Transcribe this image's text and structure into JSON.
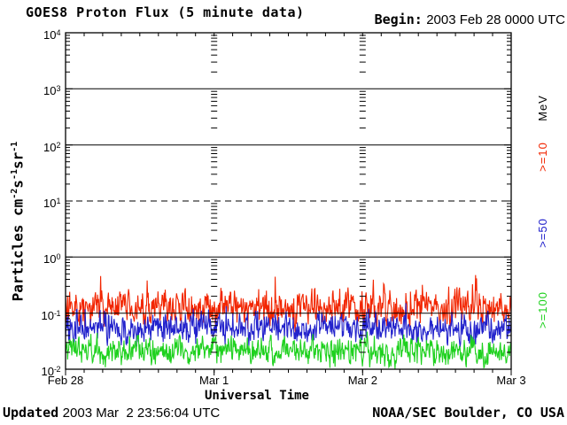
{
  "header": {
    "title": "GOES8 Proton Flux (5 minute data)",
    "begin_label": "Begin:",
    "begin_value": "2003 Feb 28 0000 UTC"
  },
  "footer": {
    "updated_label": "Updated",
    "updated_value": "2003 Mar  2 23:56:04 UTC",
    "source": "NOAA/SEC Boulder, CO USA"
  },
  "chart_data": {
    "type": "line",
    "title": "GOES8 Proton Flux (5 minute data)",
    "xlabel": "Universal Time",
    "ylabel": "Particles cm⁻²s⁻¹sr⁻¹",
    "ylabel_parts": [
      {
        "text": "Particles cm"
      },
      {
        "sup": "-2"
      },
      {
        "text": "s"
      },
      {
        "sup": "-1"
      },
      {
        "text": "sr"
      },
      {
        "sup": "-1"
      }
    ],
    "y_scale": "log10",
    "ylim": [
      0.01,
      10000
    ],
    "y_tick_base": "10",
    "y_tick_exponents": [
      "4",
      "3",
      "2",
      "1",
      "0",
      "-1",
      "-2"
    ],
    "gridlines": [
      {
        "exponent": 3,
        "style": "solid"
      },
      {
        "exponent": 2,
        "style": "solid"
      },
      {
        "exponent": 1,
        "style": "dashed"
      },
      {
        "exponent": 0,
        "style": "solid"
      },
      {
        "exponent": -1,
        "style": "solid"
      }
    ],
    "x_ticks": [
      "Feb 28",
      "Mar 1",
      "Mar 2",
      "Mar 3"
    ],
    "x_range_days": 3,
    "x_minor_tick_hours": 3,
    "cadence_minutes": 5,
    "points_per_series": 864,
    "unit_label": "MeV",
    "legend_position": "right",
    "series": [
      {
        "name": ">=10",
        "color": "#f22500",
        "typical_flux": 0.12,
        "flux_range": [
          0.04,
          0.5
        ],
        "log10_mean": -0.92,
        "log10_noise_halfrange": 0.42,
        "spike_probability": 0.05,
        "spike_amplitude": 0.55,
        "log10_min": -1.45,
        "log10_max": -0.32
      },
      {
        "name": ">=50",
        "color": "#2222cc",
        "typical_flux": 0.05,
        "flux_range": [
          0.02,
          0.15
        ],
        "log10_mean": -1.28,
        "log10_noise_halfrange": 0.38,
        "spike_probability": 0.03,
        "spike_amplitude": 0.35,
        "log10_min": -1.75,
        "log10_max": -0.82
      },
      {
        "name": ">=100",
        "color": "#1fd11f",
        "typical_flux": 0.02,
        "flux_range": [
          0.01,
          0.06
        ],
        "log10_mean": -1.68,
        "log10_noise_halfrange": 0.34,
        "spike_probability": 0.02,
        "spike_amplitude": 0.3,
        "log10_min": -2.0,
        "log10_max": -1.33
      }
    ]
  }
}
